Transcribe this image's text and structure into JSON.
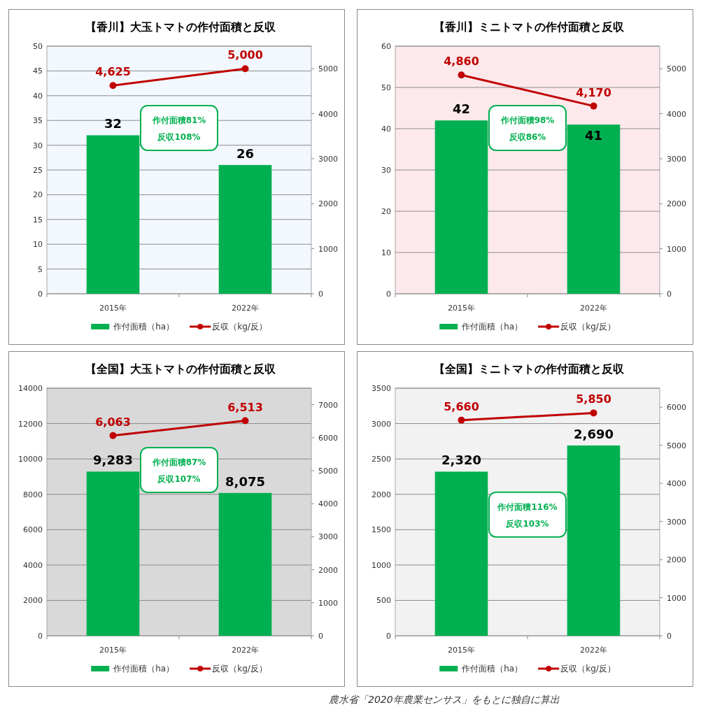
{
  "chart_data": [
    {
      "type": "bar",
      "title": "【香川】大玉トマトの作付面積と反収",
      "categories": [
        "2015年",
        "2022年"
      ],
      "series": [
        {
          "name": "作付面積（ha）",
          "color": "#00b050",
          "values": [
            32,
            26
          ],
          "value_labels": [
            "32",
            "26"
          ]
        },
        {
          "name": "反収（kg/反）",
          "type": "line",
          "axis": "y2",
          "marker": "circle",
          "color": "#c00000",
          "values": [
            4625,
            5000
          ],
          "value_labels": [
            "4,625",
            "5,000"
          ]
        }
      ],
      "ylim": [
        0,
        50
      ],
      "yticks": [
        0,
        5,
        10,
        15,
        20,
        25,
        30,
        35,
        40,
        45,
        50
      ],
      "y2lim": [
        0,
        5500
      ],
      "y2ticks": [
        0,
        1000,
        2000,
        3000,
        4000,
        5000
      ],
      "grid": "y",
      "legend": "bottom",
      "annotations": [
        "作付面積81%",
        "反収108%"
      ]
    },
    {
      "type": "bar",
      "title": "【香川】ミニトマトの作付面積と反収",
      "categories": [
        "2015年",
        "2022年"
      ],
      "series": [
        {
          "name": "作付面積（ha）",
          "color": "#00b050",
          "values": [
            42,
            41
          ],
          "value_labels": [
            "42",
            "41"
          ]
        },
        {
          "name": "反収（kg/反）",
          "type": "line",
          "axis": "y2",
          "marker": "circle",
          "color": "#c00000",
          "values": [
            4860,
            4170
          ],
          "value_labels": [
            "4,860",
            "4,170"
          ]
        }
      ],
      "ylim": [
        0,
        60
      ],
      "yticks": [
        0,
        10,
        20,
        30,
        40,
        50,
        60
      ],
      "y2lim": [
        0,
        5500
      ],
      "y2ticks": [
        0,
        1000,
        2000,
        3000,
        4000,
        5000
      ],
      "grid": "y",
      "legend": "bottom",
      "annotations": [
        "作付面積98%",
        "反収86%"
      ]
    },
    {
      "type": "bar",
      "title": "【全国】大玉トマトの作付面積と反収",
      "categories": [
        "2015年",
        "2022年"
      ],
      "series": [
        {
          "name": "作付面積（ha）",
          "color": "#00b050",
          "values": [
            9283,
            8075
          ],
          "value_labels": [
            "9,283",
            "8,075"
          ]
        },
        {
          "name": "反収（kg/反）",
          "type": "line",
          "axis": "y2",
          "marker": "circle",
          "color": "#c00000",
          "values": [
            6063,
            6513
          ],
          "value_labels": [
            "6,063",
            "6,513"
          ]
        }
      ],
      "ylim": [
        0,
        14000
      ],
      "yticks": [
        0,
        2000,
        4000,
        6000,
        8000,
        10000,
        12000,
        14000
      ],
      "y2lim": [
        0,
        7500
      ],
      "y2ticks": [
        0,
        1000,
        2000,
        3000,
        4000,
        5000,
        6000,
        7000
      ],
      "grid": "y",
      "legend": "bottom",
      "annotations": [
        "作付面積87%",
        "反収107%"
      ]
    },
    {
      "type": "bar",
      "title": "【全国】ミニトマトの作付面積と反収",
      "categories": [
        "2015年",
        "2022年"
      ],
      "series": [
        {
          "name": "作付面積（ha）",
          "color": "#00b050",
          "values": [
            2320,
            2690
          ],
          "value_labels": [
            "2,320",
            "2,690"
          ]
        },
        {
          "name": "反収（kg/反）",
          "type": "line",
          "axis": "y2",
          "marker": "circle",
          "color": "#c00000",
          "values": [
            5660,
            5850
          ],
          "value_labels": [
            "5,660",
            "5,850"
          ]
        }
      ],
      "ylim": [
        0,
        3500
      ],
      "yticks": [
        0,
        500,
        1000,
        1500,
        2000,
        2500,
        3000,
        3500
      ],
      "y2lim": [
        0,
        6500
      ],
      "y2ticks": [
        0,
        1000,
        2000,
        3000,
        4000,
        5000,
        6000
      ],
      "grid": "y",
      "legend": "bottom",
      "annotations": [
        "作付面積116%",
        "反収103%",
        "農水省「2020年農業センサス」をもとに独自に算出"
      ]
    }
  ]
}
